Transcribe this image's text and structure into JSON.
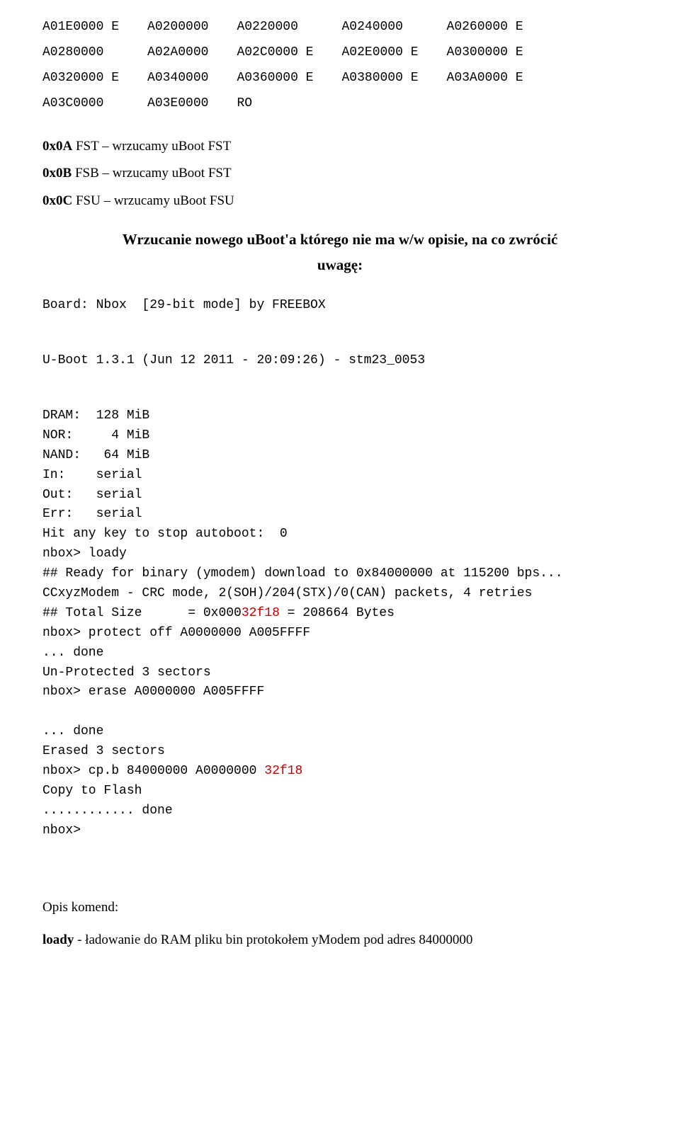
{
  "mem_rows": [
    [
      "A01E0000 E",
      "A0200000",
      "A0220000",
      "A0240000",
      "A0260000 E"
    ],
    [
      "A0280000",
      "A02A0000",
      "A02C0000 E",
      "A02E0000 E",
      "A0300000 E"
    ],
    [
      "A0320000 E",
      "A0340000",
      "A0360000 E",
      "A0380000 E",
      "A03A0000 E"
    ],
    [
      "A03C0000",
      "A03E0000",
      "RO",
      "",
      ""
    ]
  ],
  "fst_lines": [
    {
      "code": "0x0A",
      "desc": " FST – wrzucamy uBoot FST"
    },
    {
      "code": "0x0B",
      "desc": " FSB – wrzucamy uBoot FST"
    },
    {
      "code": "0x0C",
      "desc": " FSU – wrzucamy uBoot FSU"
    }
  ],
  "heading1": "Wrzucanie nowego uBoot'a którego nie ma w/w opisie, na co zwrócić",
  "heading2": "uwagę:",
  "board_line": "Board: Nbox  [29-bit mode] by FREEBOX",
  "uboot_version": "U-Boot 1.3.1 (Jun 12 2011 - 20:09:26) - stm23_0053",
  "specs": [
    "DRAM:  128 MiB",
    "NOR:     4 MiB",
    "NAND:   64 MiB",
    "In:    serial",
    "Out:   serial",
    "Err:   serial",
    "Hit any key to stop autoboot:  0",
    "nbox> loady",
    "## Ready for binary (ymodem) download to 0x84000000 at 115200 bps...",
    "CCxyzModem - CRC mode, 2(SOH)/204(STX)/0(CAN) packets, 4 retries"
  ],
  "total_size_prefix": "## Total Size      = 0x000",
  "total_size_hl": "32f18",
  "total_size_suffix": " = 208664 Bytes",
  "protect_cmd": "nbox> protect off A0000000 A005FFFF",
  "done1": "... done",
  "unprot": "Un-Protected 3 sectors",
  "erase_cmd": "nbox> erase A0000000 A005FFFF",
  "done2": "... done",
  "erased": "Erased 3 sectors",
  "cpb_prefix": "nbox> cp.b 84000000 A0000000 ",
  "cpb_hl": "32f18",
  "copy_line": "Copy to Flash",
  "done3": "............ done",
  "prompt_end": "nbox>",
  "opis_komend": "Opis komend:",
  "loady_cmd": "loady",
  "loady_desc": " - ładowanie do RAM pliku bin protokołem yModem pod adres 84000000"
}
